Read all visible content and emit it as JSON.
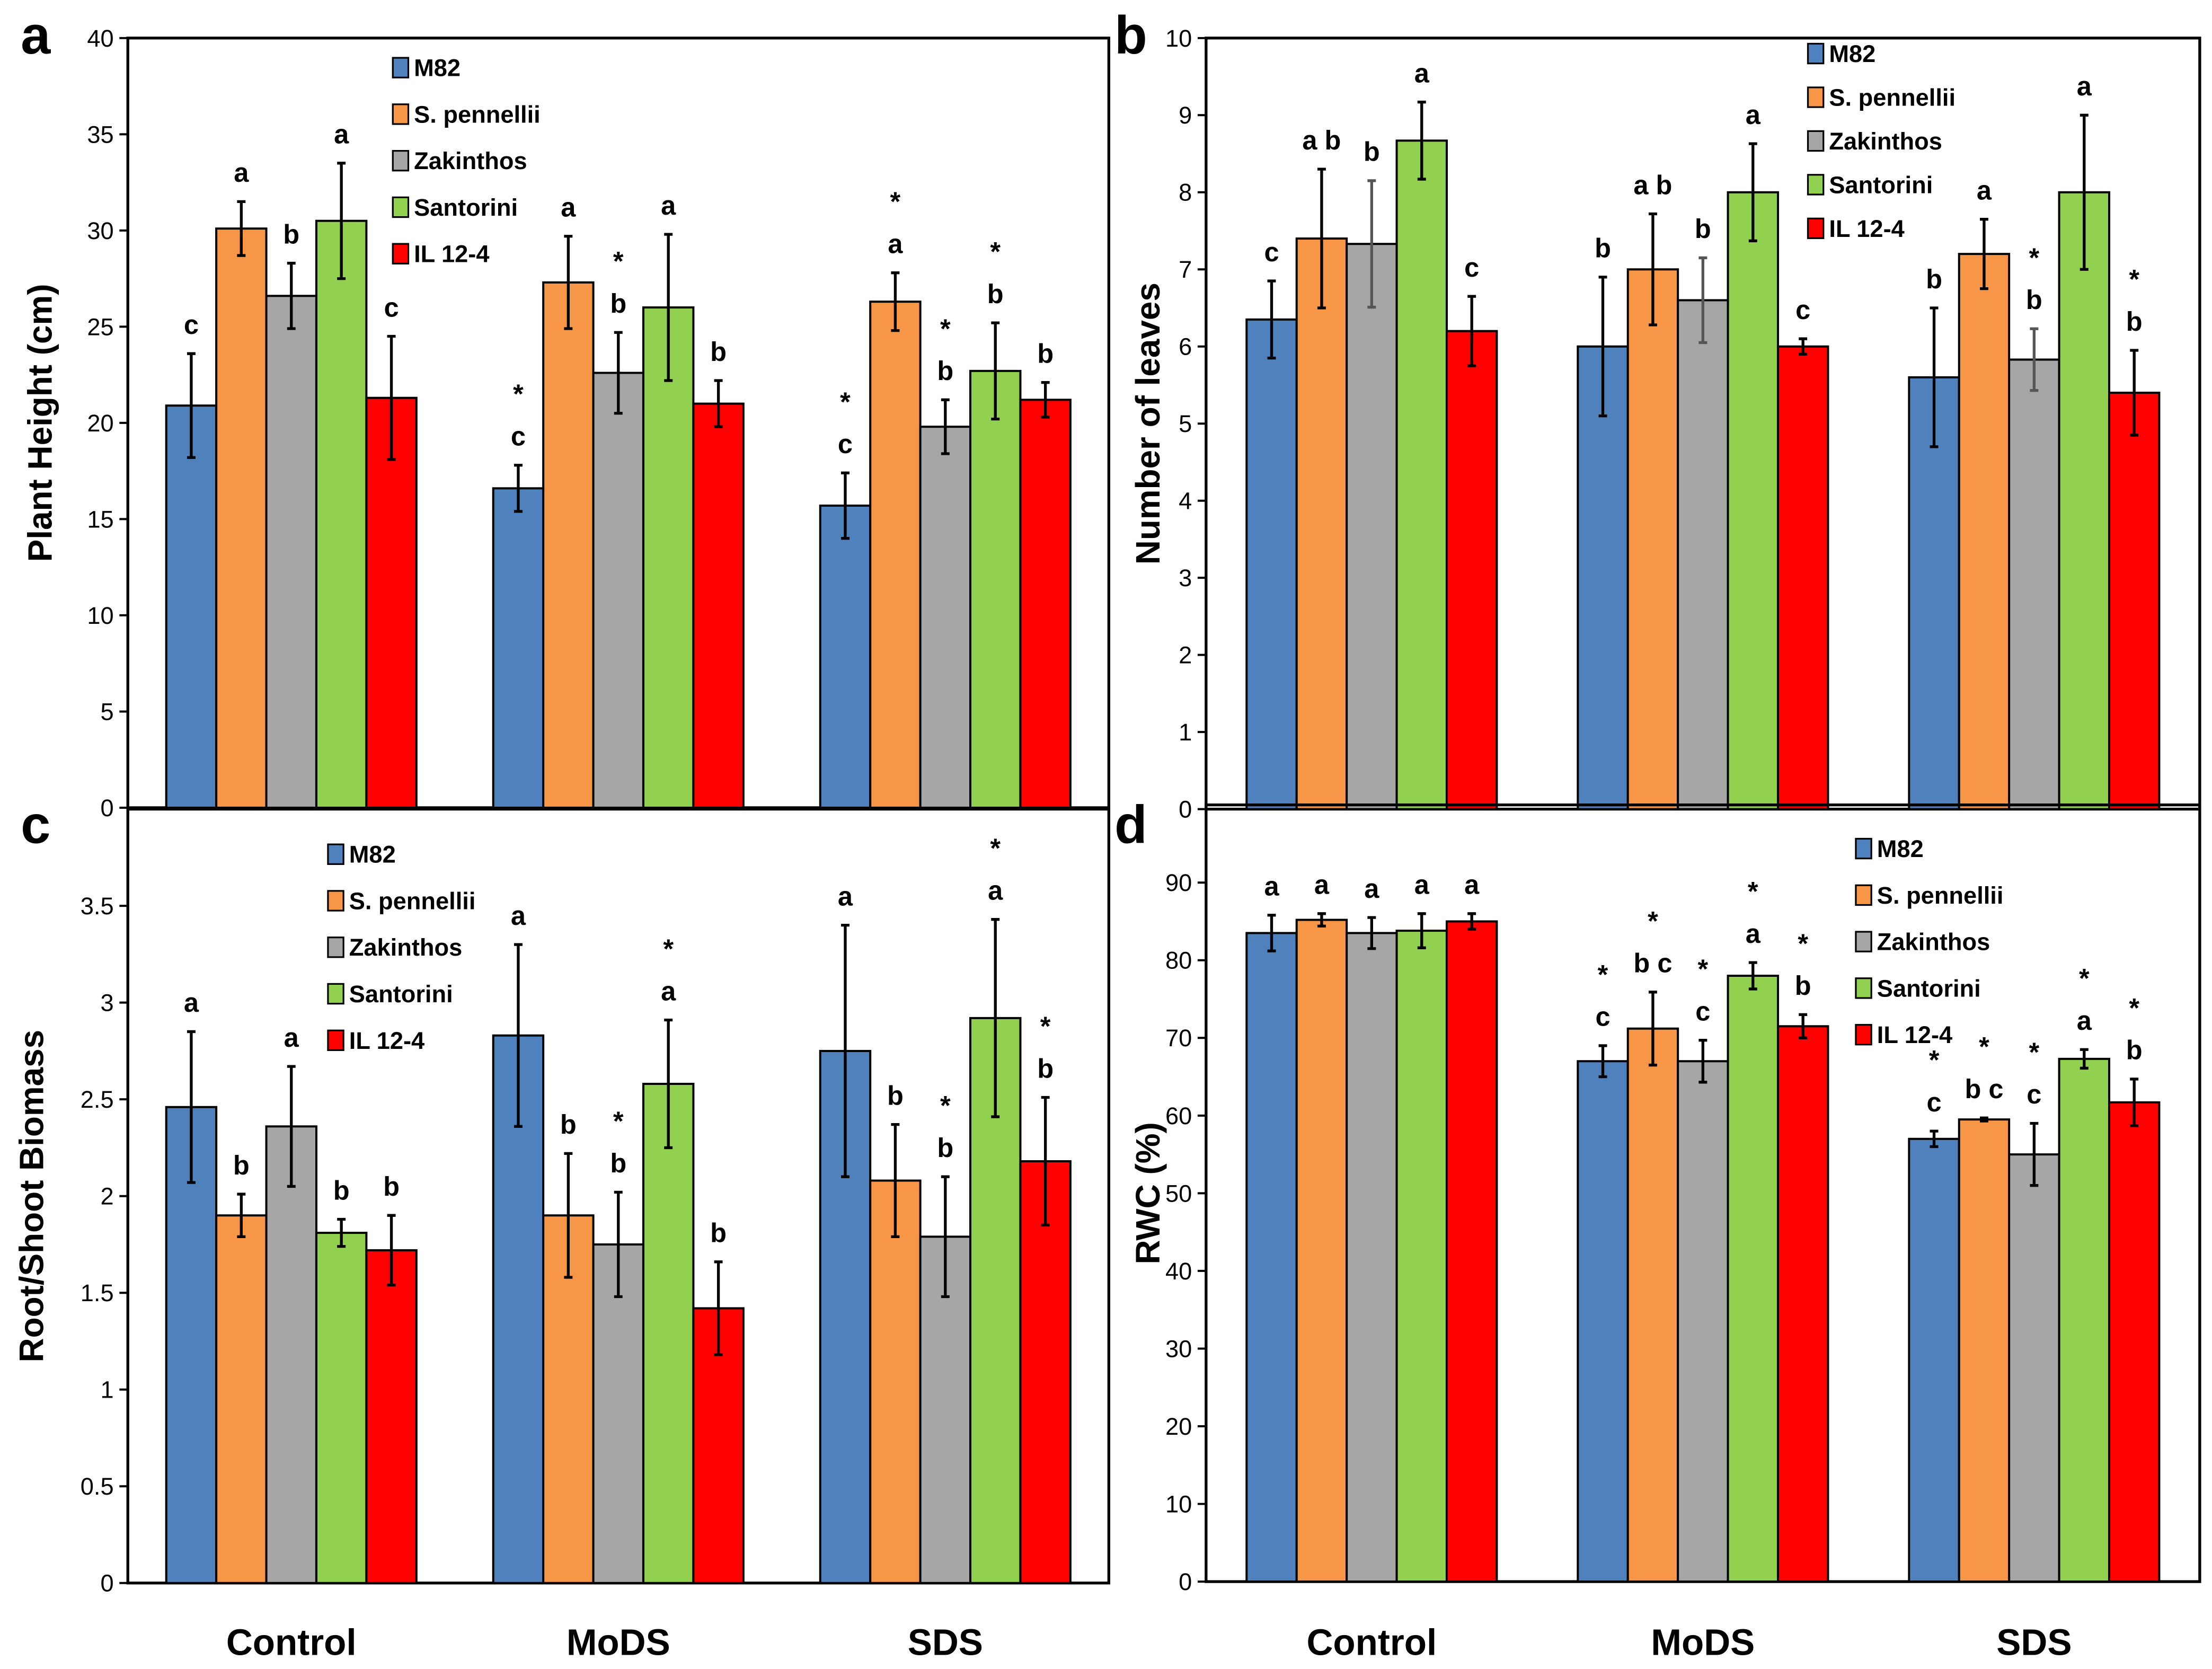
{
  "colors": {
    "M82": "#4f81bd",
    "S. pennellii": "#f79646",
    "Zakinthos": "#a6a6a6",
    "Santorini": "#92d050",
    "IL 12-4": "#ff0000"
  },
  "chart_data": [
    {
      "panel": "a",
      "type": "bar",
      "title": "",
      "xlabel": "",
      "ylabel": "Plant Height (cm)",
      "ylim": [
        0,
        40
      ],
      "ystep": 5,
      "grid": false,
      "legend": "top-center",
      "categories": [
        "Control",
        "MoDS",
        "SDS"
      ],
      "show_categories": false,
      "series": [
        {
          "name": "M82",
          "values": [
            20.9,
            16.6,
            15.7
          ],
          "errors": [
            2.7,
            1.2,
            1.7
          ],
          "labels": [
            "c",
            "* c",
            "* c"
          ]
        },
        {
          "name": "S. pennellii",
          "values": [
            30.1,
            27.3,
            26.3
          ],
          "errors": [
            1.4,
            2.4,
            1.5
          ],
          "labels": [
            "a",
            "a",
            "* a"
          ]
        },
        {
          "name": "Zakinthos",
          "values": [
            26.6,
            22.6,
            19.8
          ],
          "errors": [
            1.7,
            2.1,
            1.4
          ],
          "labels": [
            "b",
            "* b",
            "* b"
          ]
        },
        {
          "name": "Santorini",
          "values": [
            30.5,
            26.0,
            22.7
          ],
          "errors": [
            3.0,
            3.8,
            2.5
          ],
          "labels": [
            "a",
            "a",
            "* b"
          ]
        },
        {
          "name": "IL 12-4",
          "values": [
            21.3,
            21.0,
            21.2
          ],
          "errors": [
            3.2,
            1.2,
            0.9
          ],
          "labels": [
            "c",
            "b",
            "b"
          ]
        }
      ]
    },
    {
      "panel": "b",
      "type": "bar",
      "title": "",
      "xlabel": "",
      "ylabel": "Number of leaves",
      "ylim": [
        0,
        10
      ],
      "ystep": 1,
      "grid": false,
      "legend": "top-right",
      "categories": [
        "Control",
        "MoDS",
        "SDS"
      ],
      "show_categories": false,
      "series": [
        {
          "name": "M82",
          "values": [
            6.35,
            6.0,
            5.6
          ],
          "errors": [
            0.5,
            0.9,
            0.9
          ],
          "labels": [
            "c",
            "b",
            "b"
          ]
        },
        {
          "name": "S. pennellii",
          "values": [
            7.4,
            7.0,
            7.2
          ],
          "errors": [
            0.9,
            0.72,
            0.45
          ],
          "labels": [
            "a b",
            "a b",
            "a"
          ]
        },
        {
          "name": "Zakinthos",
          "values": [
            7.33,
            6.6,
            5.83
          ],
          "errors": [
            0.82,
            0.55,
            0.4
          ],
          "labels": [
            "b",
            "b",
            "* b"
          ]
        },
        {
          "name": "Santorini",
          "values": [
            8.67,
            8.0,
            8.0
          ],
          "errors": [
            0.5,
            0.63,
            1.0
          ],
          "labels": [
            "a",
            "a",
            "a"
          ]
        },
        {
          "name": "IL 12-4",
          "values": [
            6.2,
            6.0,
            5.4
          ],
          "errors": [
            0.45,
            0.1,
            0.55
          ],
          "labels": [
            "c",
            "c",
            "* b"
          ]
        }
      ]
    },
    {
      "panel": "c",
      "type": "bar",
      "title": "",
      "xlabel": "",
      "ylabel": "Root/Shoot Biomass",
      "ylim": [
        0,
        4
      ],
      "ystep": 0.5,
      "tick_max": 3.5,
      "grid": false,
      "legend": "top-center",
      "categories": [
        "Control",
        "MoDS",
        "SDS"
      ],
      "show_categories": true,
      "series": [
        {
          "name": "M82",
          "values": [
            2.46,
            2.83,
            2.75
          ],
          "errors": [
            0.39,
            0.47,
            0.65
          ],
          "labels": [
            "a",
            "a",
            "a"
          ]
        },
        {
          "name": "S. pennellii",
          "values": [
            1.9,
            1.9,
            2.08
          ],
          "errors": [
            0.11,
            0.32,
            0.29
          ],
          "labels": [
            "b",
            "b",
            "b"
          ]
        },
        {
          "name": "Zakinthos",
          "values": [
            2.36,
            1.75,
            1.79
          ],
          "errors": [
            0.31,
            0.27,
            0.31
          ],
          "labels": [
            "a",
            "* b",
            "* b"
          ]
        },
        {
          "name": "Santorini",
          "values": [
            1.81,
            2.58,
            2.92
          ],
          "errors": [
            0.07,
            0.33,
            0.51
          ],
          "labels": [
            "b",
            "* a",
            "* a"
          ]
        },
        {
          "name": "IL 12-4",
          "values": [
            1.72,
            1.42,
            2.18
          ],
          "errors": [
            0.18,
            0.24,
            0.33
          ],
          "labels": [
            "b",
            "b",
            "* b"
          ]
        }
      ]
    },
    {
      "panel": "d",
      "type": "bar",
      "title": "",
      "xlabel": "",
      "ylabel": "RWC (%)",
      "ylim": [
        0,
        100
      ],
      "ystep": 10,
      "tick_max": 90,
      "grid": false,
      "legend": "top-right",
      "categories": [
        "Control",
        "MoDS",
        "SDS"
      ],
      "show_categories": true,
      "series": [
        {
          "name": "M82",
          "values": [
            83.5,
            67.0,
            57.0
          ],
          "errors": [
            2.3,
            2.0,
            1.0
          ],
          "labels": [
            "a",
            "* c",
            "* c"
          ]
        },
        {
          "name": "S. pennellii",
          "values": [
            85.2,
            71.2,
            59.5
          ],
          "errors": [
            0.8,
            4.7,
            0.2
          ],
          "labels": [
            "a",
            "* b c",
            "* b c"
          ]
        },
        {
          "name": "Zakinthos",
          "values": [
            83.5,
            67.0,
            55.0
          ],
          "errors": [
            2.0,
            2.7,
            4.0
          ],
          "labels": [
            "a",
            "* c",
            "* c"
          ]
        },
        {
          "name": "Santorini",
          "values": [
            83.8,
            78.0,
            67.3
          ],
          "errors": [
            2.2,
            1.7,
            1.2
          ],
          "labels": [
            "a",
            "* a",
            "* a"
          ]
        },
        {
          "name": "IL 12-4",
          "values": [
            85.0,
            71.5,
            61.7
          ],
          "errors": [
            1.0,
            1.5,
            3.0
          ],
          "labels": [
            "a",
            "* b",
            "* b"
          ]
        }
      ]
    }
  ]
}
